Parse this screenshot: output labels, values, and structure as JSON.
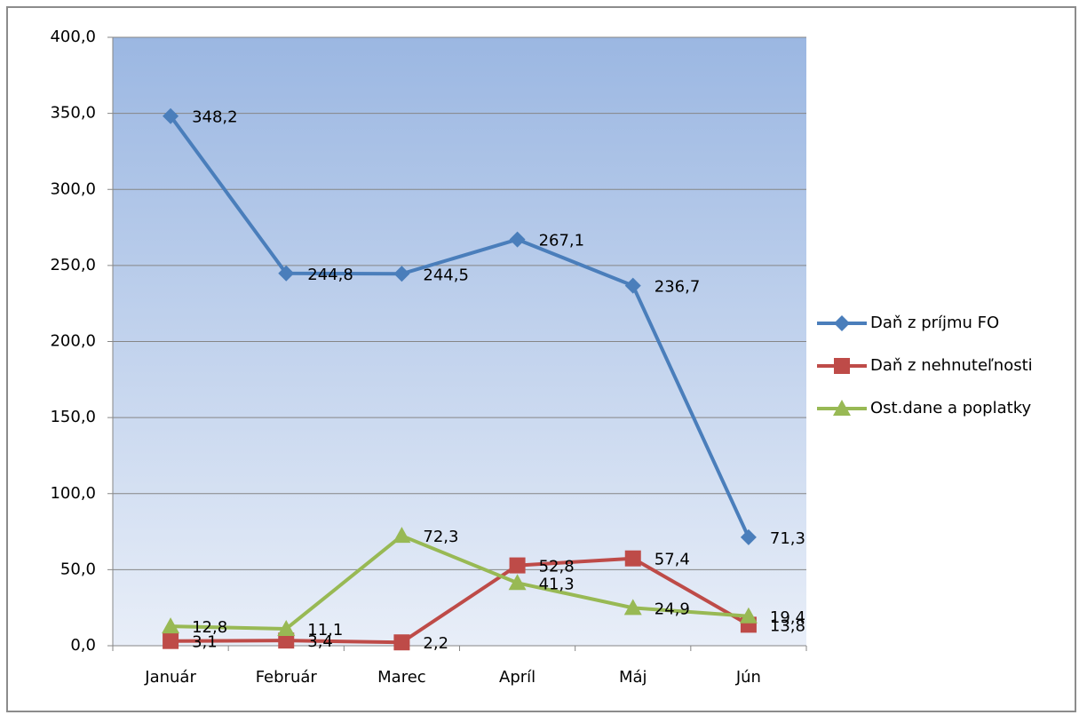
{
  "chart_data": {
    "type": "line",
    "categories": [
      "Január",
      "Február",
      "Marec",
      "Apríl",
      "Máj",
      "Jún"
    ],
    "series": [
      {
        "name": "Daň z príjmu FO",
        "color": "#4a7ebb",
        "marker": "diamond",
        "values": [
          348.2,
          244.8,
          244.5,
          267.1,
          236.7,
          71.3
        ],
        "value_labels": [
          "348,2",
          "244,8",
          "244,5",
          "267,1",
          "236,7",
          "71,3"
        ]
      },
      {
        "name": "Daň z nehnuteľnosti",
        "color": "#be4b48",
        "marker": "square",
        "values": [
          3.1,
          3.4,
          2.2,
          52.8,
          57.4,
          13.8
        ],
        "value_labels": [
          "3,1",
          "3,4",
          "2,2",
          "52,8",
          "57,4",
          "13,8"
        ]
      },
      {
        "name": "Ost.dane a poplatky",
        "color": "#98b954",
        "marker": "triangle",
        "values": [
          12.8,
          11.1,
          72.3,
          41.3,
          24.9,
          19.4
        ],
        "value_labels": [
          "12,8",
          "11,1",
          "72,3",
          "41,3",
          "24,9",
          "19,4"
        ]
      }
    ],
    "ylim": [
      0,
      400
    ],
    "yticks": [
      {
        "value": 0,
        "label": "0,0"
      },
      {
        "value": 50,
        "label": "50,0"
      },
      {
        "value": 100,
        "label": "100,0"
      },
      {
        "value": 150,
        "label": "150,0"
      },
      {
        "value": 200,
        "label": "200,0"
      },
      {
        "value": 250,
        "label": "250,0"
      },
      {
        "value": 300,
        "label": "300,0"
      },
      {
        "value": 350,
        "label": "350,0"
      },
      {
        "value": 400,
        "label": "400,0"
      }
    ],
    "grid": true,
    "legend": "right"
  }
}
